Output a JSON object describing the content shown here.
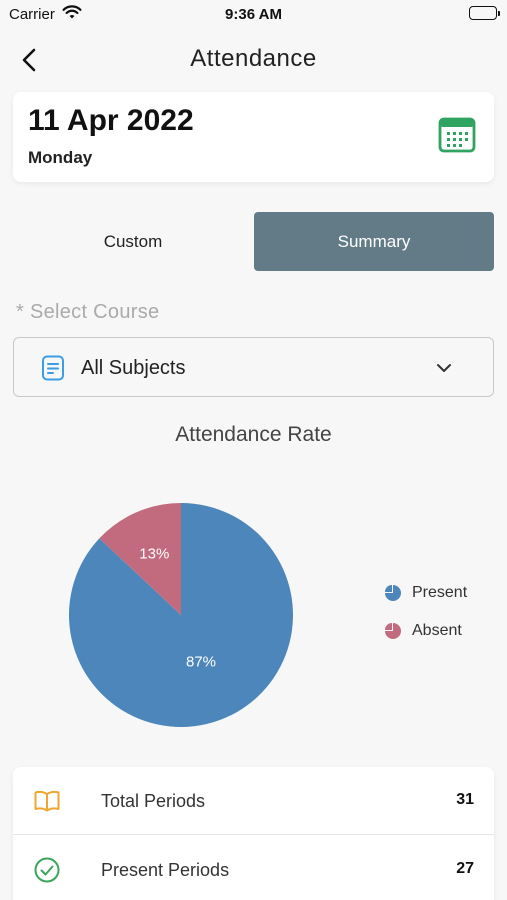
{
  "status_bar": {
    "carrier": "Carrier",
    "time": "9:36 AM"
  },
  "header": {
    "title": "Attendance"
  },
  "date_card": {
    "date": "11 Apr 2022",
    "day": "Monday"
  },
  "tabs": [
    {
      "label": "Custom",
      "active": false
    },
    {
      "label": "Summary",
      "active": true
    }
  ],
  "course_select": {
    "label": "* Select Course",
    "value": "All Subjects"
  },
  "chart": {
    "title": "Attendance Rate"
  },
  "chart_data": {
    "type": "pie",
    "title": "Attendance Rate",
    "categories": [
      "Present",
      "Absent"
    ],
    "values": [
      87,
      13
    ],
    "labels": [
      "87%",
      "13%"
    ],
    "colors": [
      "#4d86bb",
      "#c36b7e"
    ],
    "legend": "right"
  },
  "stats": [
    {
      "label": "Total Periods",
      "value": "31",
      "icon": "book-icon",
      "icon_color": "#f0a531"
    },
    {
      "label": "Present Periods",
      "value": "27",
      "icon": "check-circle-icon",
      "icon_color": "#3aa55b"
    }
  ],
  "colors": {
    "accent": "#637b87",
    "calendar": "#2fa360",
    "doc_icon": "#3a9ee6"
  }
}
